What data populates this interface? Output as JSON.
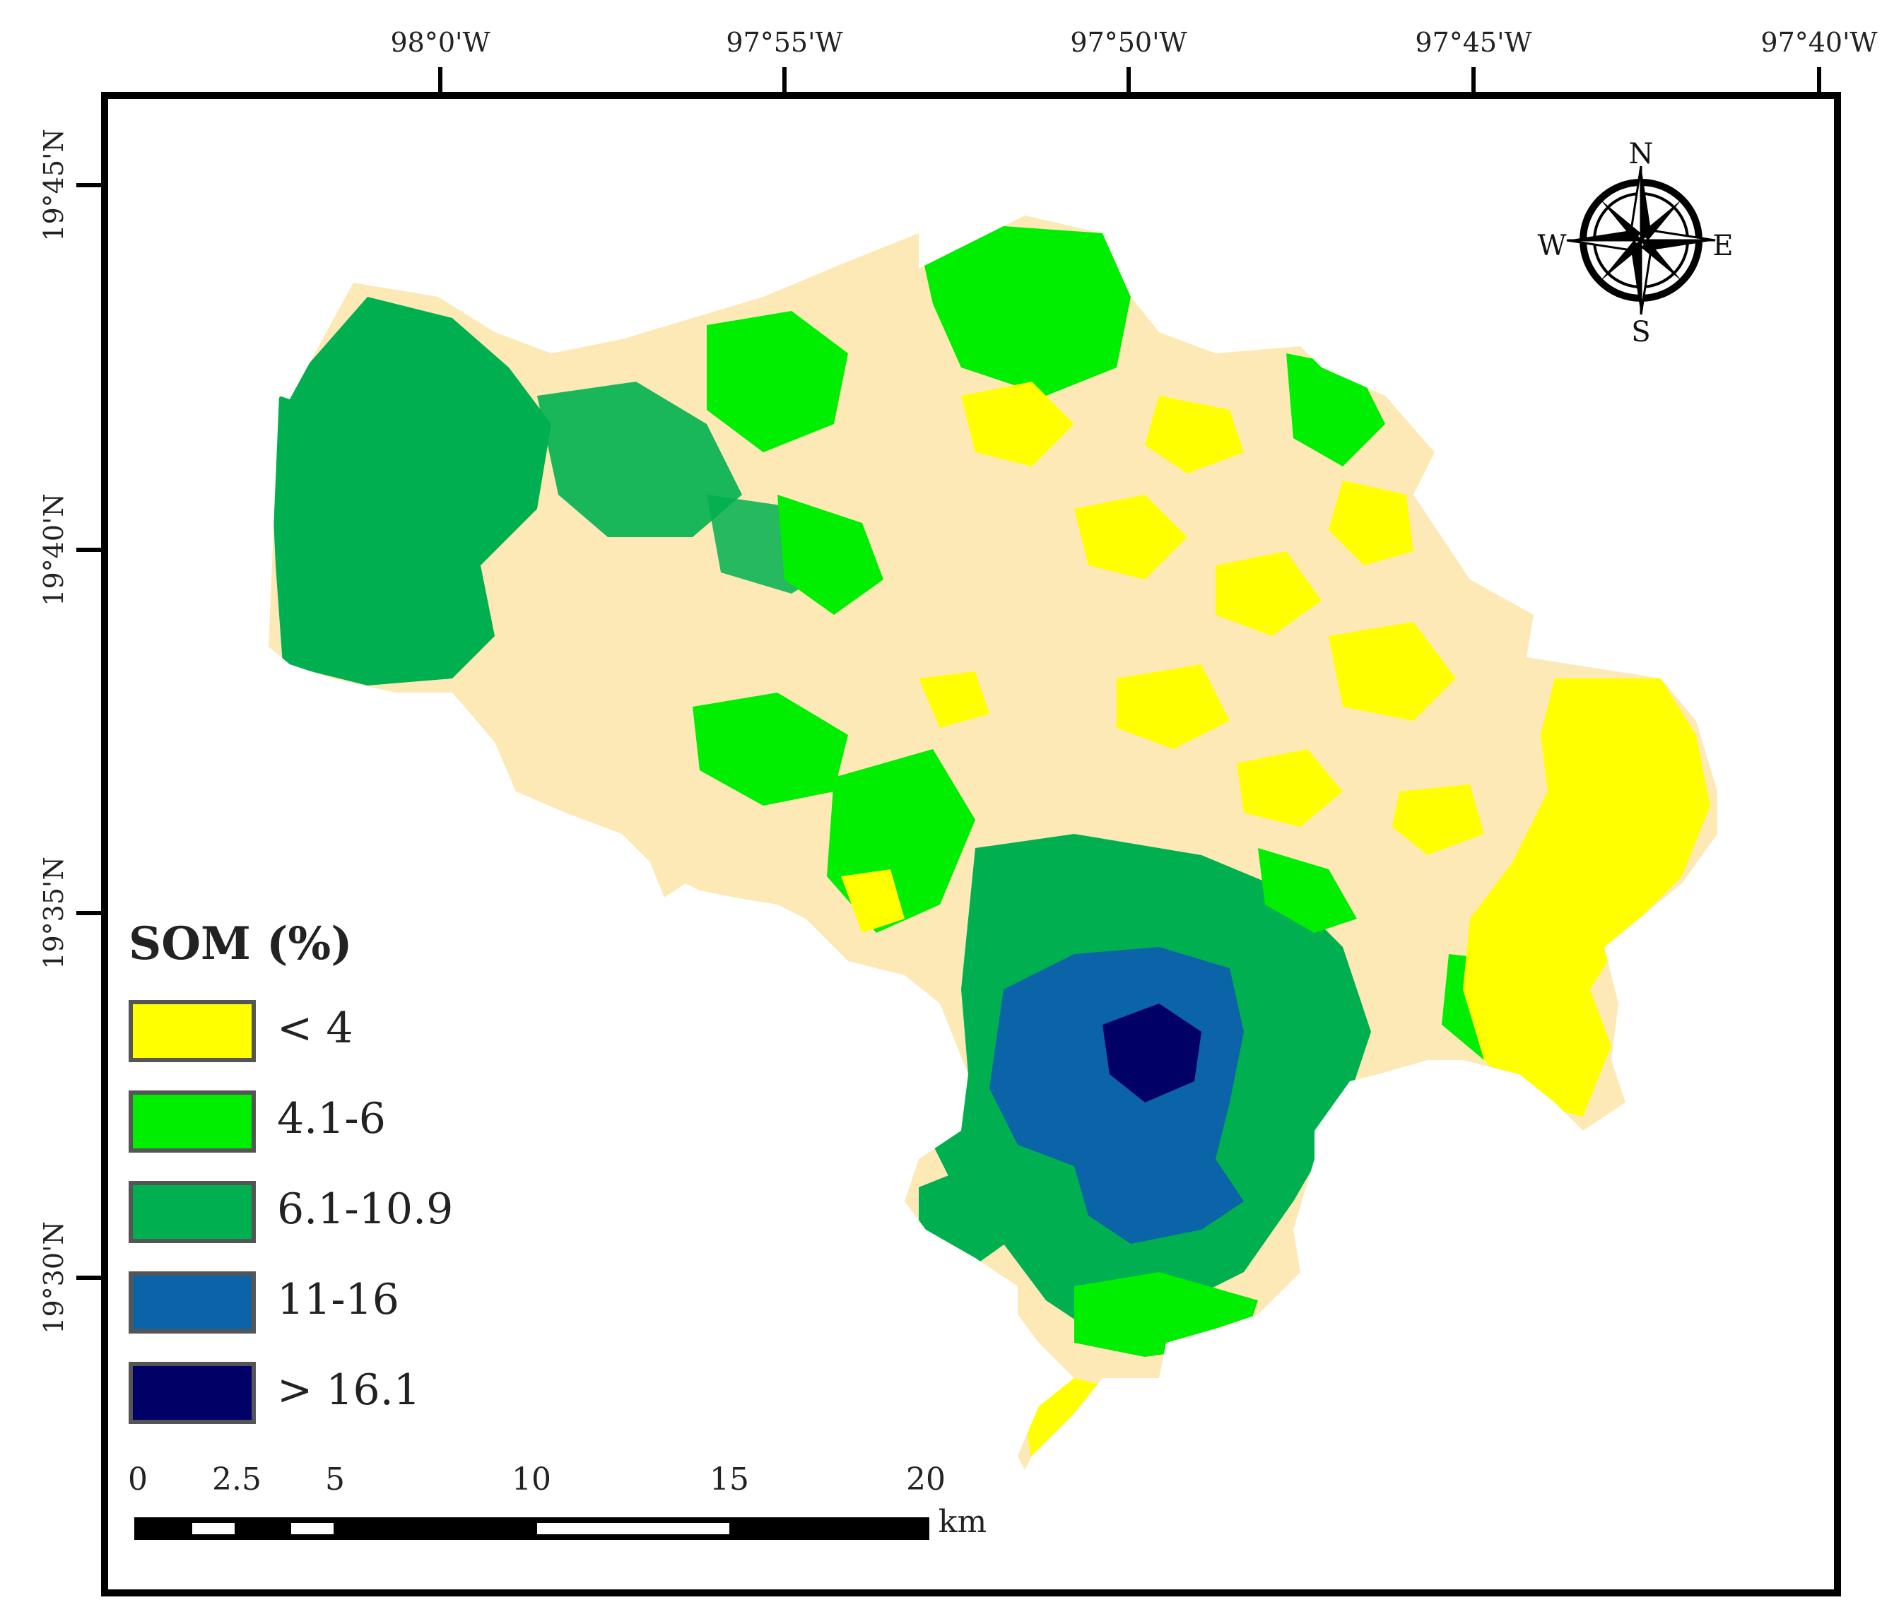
{
  "map": {
    "lon_ticks": [
      "98°0'W",
      "97°55'W",
      "97°50'W",
      "97°45'W",
      "97°40'W"
    ],
    "lat_ticks": [
      "19°45'N",
      "19°40'N",
      "19°35'N",
      "19°30'N"
    ],
    "legend": {
      "title": "SOM (%)",
      "classes": [
        {
          "label": "< 4",
          "color": "#ffff00"
        },
        {
          "label": "4.1-6",
          "color": "#00ee00"
        },
        {
          "label": "6.1-10.9",
          "color": "#00b050"
        },
        {
          "label": "11-16",
          "color": "#0b63a8"
        },
        {
          "label": "> 16.1",
          "color": "#000066"
        }
      ]
    },
    "background_class_color": "#fde9b5",
    "scale_bar": {
      "ticks": [
        "0",
        "2.5",
        "5",
        "10",
        "15",
        "20"
      ],
      "unit": "km"
    },
    "north_arrow": {
      "n": "N",
      "s": "S",
      "e": "E",
      "w": "W"
    }
  }
}
